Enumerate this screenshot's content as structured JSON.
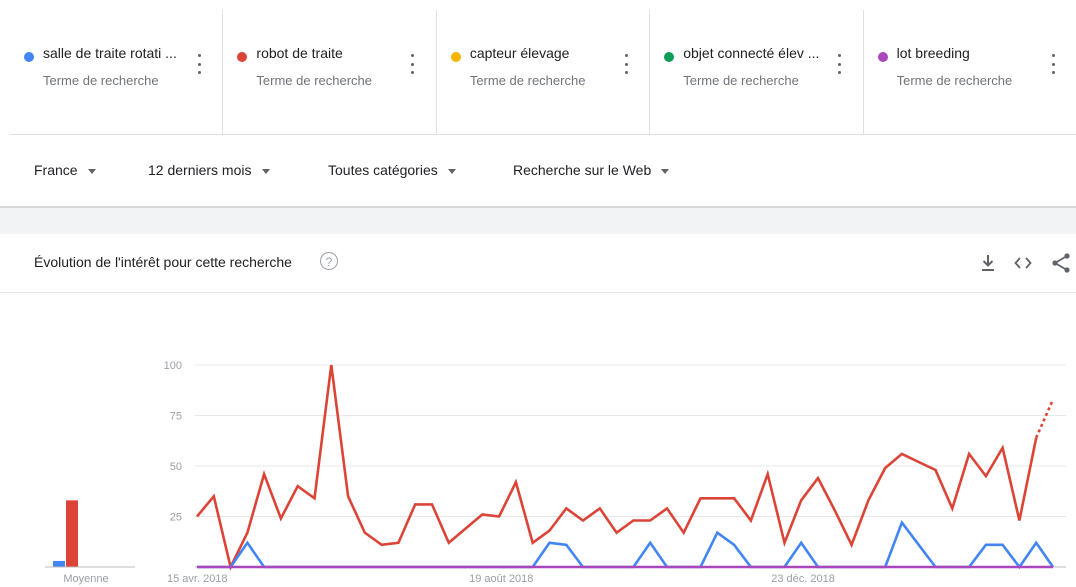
{
  "terms": [
    {
      "name": "salle de traite rotati ...",
      "sub": "Terme de recherche",
      "color": "#4285f4"
    },
    {
      "name": "robot de traite",
      "sub": "Terme de recherche",
      "color": "#db4437"
    },
    {
      "name": "capteur élevage",
      "sub": "Terme de recherche",
      "color": "#f4b400"
    },
    {
      "name": "objet connecté élev ...",
      "sub": "Terme de recherche",
      "color": "#0f9d58"
    },
    {
      "name": "lot breeding",
      "sub": "Terme de recherche",
      "color": "#ab47bc"
    }
  ],
  "filters": {
    "region": "France",
    "period": "12 derniers mois",
    "category": "Toutes catégories",
    "search_type": "Recherche sur le Web"
  },
  "card": {
    "title": "Évolution de l'intérêt pour cette recherche",
    "icons": [
      "help-icon",
      "download-icon",
      "embed-icon",
      "share-icon"
    ]
  },
  "chart_data": {
    "type": "line",
    "ylim": [
      0,
      100
    ],
    "yticks": [
      25,
      50,
      75,
      100
    ],
    "x_labels": [
      "15 avr. 2018",
      "19 août 2018",
      "23 déc. 2018"
    ],
    "x_label_index": [
      0,
      18,
      36
    ],
    "average_label": "Moyenne",
    "averages": [
      {
        "term": "salle de traite rotati ...",
        "value": 3,
        "color": "#4285f4"
      },
      {
        "term": "robot de traite",
        "value": 33,
        "color": "#db4437"
      }
    ],
    "series": [
      {
        "name": "robot de traite",
        "color": "#db4437",
        "partial_last": true,
        "values": [
          25,
          35,
          0,
          17,
          46,
          24,
          40,
          34,
          100,
          35,
          17,
          11,
          12,
          31,
          31,
          12,
          19,
          26,
          25,
          42,
          12,
          18,
          29,
          23,
          29,
          17,
          23,
          23,
          29,
          17,
          34,
          34,
          34,
          23,
          46,
          12,
          33,
          44,
          28,
          11,
          33,
          49,
          56,
          52,
          48,
          29,
          56,
          45,
          59,
          23,
          64,
          83
        ]
      },
      {
        "name": "salle de traite rotati ...",
        "color": "#4285f4",
        "values": [
          0,
          0,
          0,
          12,
          0,
          0,
          0,
          0,
          0,
          0,
          0,
          0,
          0,
          0,
          0,
          0,
          0,
          0,
          0,
          0,
          0,
          12,
          11,
          0,
          0,
          0,
          0,
          12,
          0,
          0,
          0,
          17,
          11,
          0,
          0,
          0,
          12,
          0,
          0,
          0,
          0,
          0,
          22,
          11,
          0,
          0,
          0,
          11,
          11,
          0,
          12,
          0
        ]
      },
      {
        "name": "lot breeding",
        "color": "#ab47bc",
        "values": [
          0,
          0,
          0,
          0,
          0,
          0,
          0,
          0,
          0,
          0,
          0,
          0,
          0,
          0,
          0,
          0,
          0,
          0,
          0,
          0,
          0,
          0,
          0,
          0,
          0,
          0,
          0,
          0,
          0,
          0,
          0,
          0,
          0,
          0,
          0,
          0,
          0,
          0,
          0,
          0,
          0,
          0,
          0,
          0,
          0,
          0,
          0,
          0,
          0,
          0,
          0,
          0
        ]
      }
    ]
  }
}
